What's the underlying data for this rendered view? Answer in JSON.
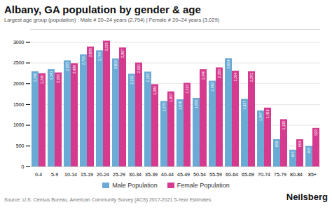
{
  "chart_data": {
    "type": "bar",
    "title": "Albany, GA population by gender & age",
    "subtitle": "Largest age group (population) : Male # 20–24 years (2,794) | Female # 20–24 years (3,029)",
    "categories": [
      "0-4",
      "5-9",
      "10-14",
      "15-19",
      "20-24",
      "25-29",
      "30-34",
      "35-39",
      "40-44",
      "45-49",
      "50-54",
      "55-59",
      "60-64",
      "65-69",
      "70-74",
      "75-79",
      "80-84",
      "85+"
    ],
    "series": [
      {
        "name": "Male Population",
        "color": "#6aaad4",
        "values": [
          2290,
          2341,
          2553,
          2700,
          2794,
          2600,
          2232,
          2283,
          1575,
          1618,
          1650,
          2063,
          2604,
          1627,
          1347,
          656,
          403,
          493
        ],
        "value_labels": [
          "2,290",
          "2,341",
          "2,553",
          "2,700",
          "2,794",
          "2,600",
          "2,232",
          "2,283",
          "1,575",
          "1,618",
          "1,650",
          "2,063",
          "2,604",
          "1,627",
          "1,347",
          "656",
          "403",
          "493"
        ]
      },
      {
        "name": "Female Population",
        "color": "#d63a8e",
        "values": [
          2245,
          2263,
          2486,
          2886,
          3029,
          2867,
          2500,
          1980,
          1807,
          2013,
          2340,
          2383,
          2304,
          2291,
          1416,
          1138,
          654,
          929
        ],
        "value_labels": [
          "2,245",
          "2,263",
          "2,486",
          "2,886",
          "3,029",
          "2,867",
          "2,500",
          "1,980",
          "1,807",
          "2,013",
          "2,340",
          "2,383",
          "2,304",
          "2,291",
          "1,416",
          "1,138",
          "654",
          "929"
        ]
      }
    ],
    "ylim": [
      0,
      3300
    ],
    "yticks": [
      0,
      500,
      1000,
      1500,
      2000,
      2500,
      3000
    ],
    "grid": true,
    "legend": "bottom",
    "data_labels": true,
    "annotations": [
      "Source: U.S. Census Bureau, American Community Survey (ACS) 2017-2021 5-Year Estimates",
      "Neilsberg"
    ]
  }
}
